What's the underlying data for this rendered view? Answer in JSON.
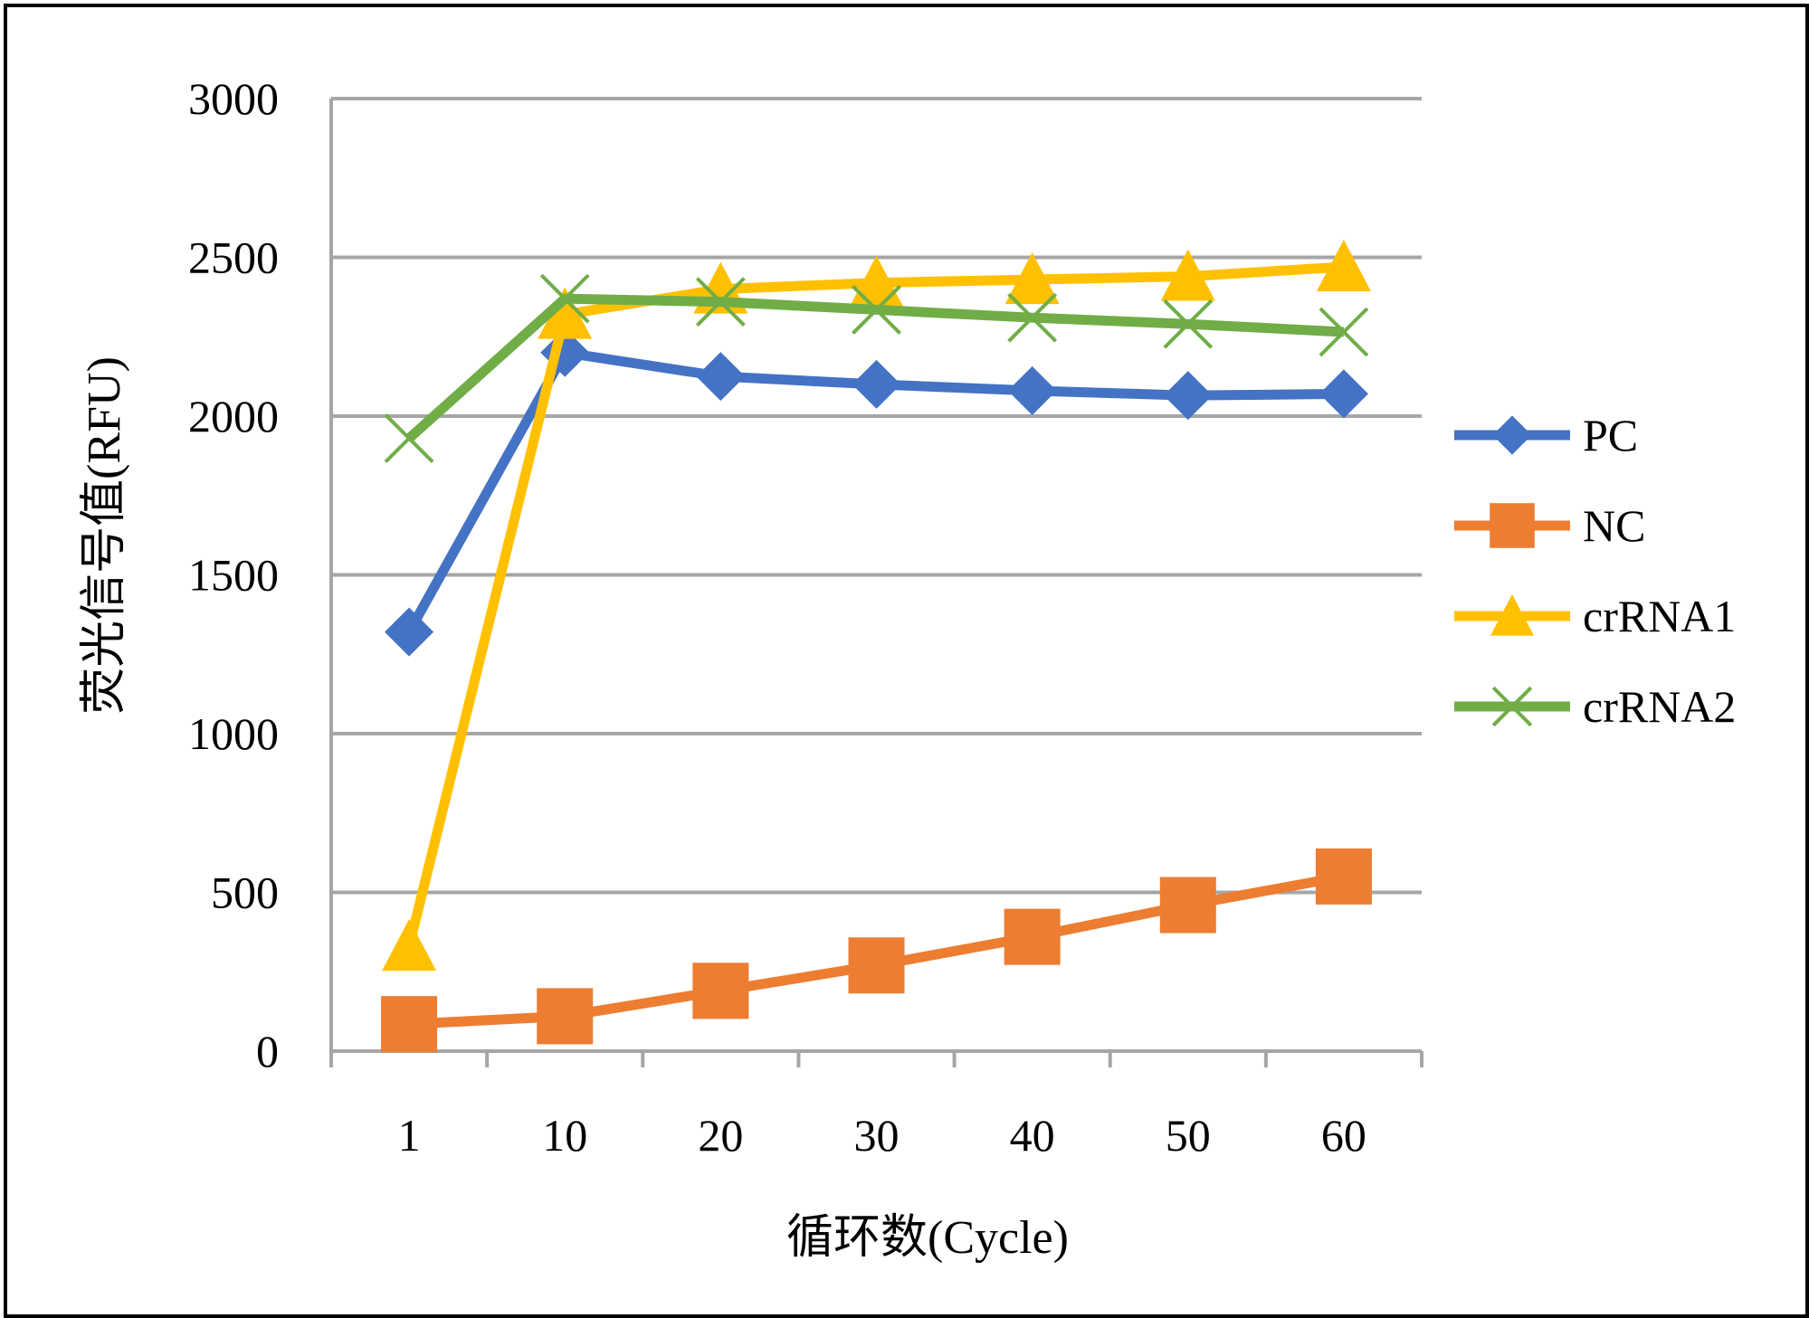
{
  "chart_data": {
    "type": "line",
    "categories": [
      "1",
      "10",
      "20",
      "30",
      "40",
      "50",
      "60"
    ],
    "xlabel": "循环数(Cycle)",
    "ylabel": "荧光信号值(RFU)",
    "ylim": [
      0,
      3000
    ],
    "yticks": [
      "0",
      "500",
      "1000",
      "1500",
      "2000",
      "2500",
      "3000"
    ],
    "grid": "horizontal",
    "legend_position": "right",
    "series": [
      {
        "name": "PC",
        "color": "#4472C4",
        "marker": "diamond",
        "values": [
          1320,
          2200,
          2125,
          2100,
          2080,
          2065,
          2070
        ]
      },
      {
        "name": "NC",
        "color": "#ED7D31",
        "marker": "square",
        "values": [
          85,
          110,
          190,
          270,
          360,
          460,
          550
        ]
      },
      {
        "name": "crRNA1",
        "color": "#FFC000",
        "marker": "triangle",
        "values": [
          330,
          2320,
          2400,
          2420,
          2430,
          2440,
          2470
        ]
      },
      {
        "name": "crRNA2",
        "color": "#70AD47",
        "marker": "x",
        "values": [
          1930,
          2370,
          2360,
          2335,
          2310,
          2290,
          2265
        ]
      }
    ]
  }
}
